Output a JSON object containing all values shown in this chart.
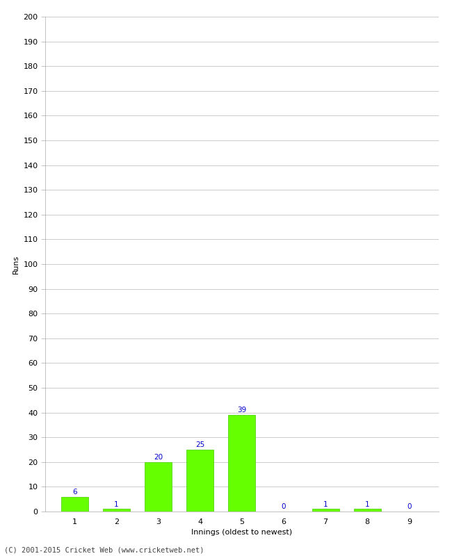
{
  "categories": [
    "1",
    "2",
    "3",
    "4",
    "5",
    "6",
    "7",
    "8",
    "9"
  ],
  "values": [
    6,
    1,
    20,
    25,
    39,
    0,
    1,
    1,
    0
  ],
  "bar_color": "#66ff00",
  "bar_edge_color": "#44cc00",
  "label_color": "#0000cc",
  "title": "",
  "xlabel": "Innings (oldest to newest)",
  "ylabel": "Runs",
  "ylim": [
    0,
    200
  ],
  "yticks": [
    0,
    10,
    20,
    30,
    40,
    50,
    60,
    70,
    80,
    90,
    100,
    110,
    120,
    130,
    140,
    150,
    160,
    170,
    180,
    190,
    200
  ],
  "grid_color": "#cccccc",
  "background_color": "#ffffff",
  "footer": "(C) 2001-2015 Cricket Web (www.cricketweb.net)",
  "label_fontsize": 7.5,
  "axis_label_fontsize": 8,
  "tick_fontsize": 8,
  "footer_fontsize": 7.5
}
